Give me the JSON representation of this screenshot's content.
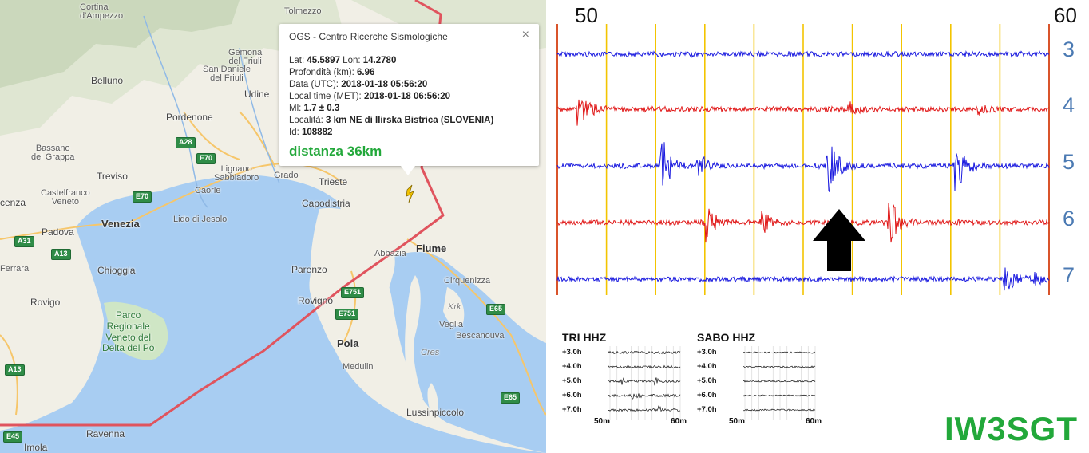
{
  "map": {
    "places": {
      "cortina_line1": "Cortina",
      "cortina_line2": "d'Ampezzo",
      "tolmezzo": "Tolmezzo",
      "gemona_line1": "Gemona",
      "gemona_line2": "del Friuli",
      "sandaniele_line1": "San Daniele",
      "sandaniele_line2": "del Friuli",
      "belluno": "Belluno",
      "udine": "Udine",
      "pordenone": "Pordenone",
      "bassano_line1": "Bassano",
      "bassano_line2": "del Grappa",
      "lignano_line1": "Lignano",
      "lignano_line2": "Sabbiadoro",
      "grado": "Grado",
      "treviso": "Treviso",
      "castelfranco_line1": "Castelfranco",
      "castelfranco_line2": "Veneto",
      "caorle": "Caorle",
      "venezia": "Venezia",
      "lido": "Lido di Jesolo",
      "vicenza": "cenza",
      "padova": "Padova",
      "ferrara": "Ferrara",
      "chioggia": "Chioggia",
      "rovigo": "Rovigo",
      "parco_line1": "Parco",
      "parco_line2": "Regionale",
      "parco_line3": "Veneto del",
      "parco_line4": "Delta del Po",
      "trieste": "Trieste",
      "capodistria": "Capodistria",
      "abbazia": "Abbazia",
      "fiume": "Fiume",
      "parenzo": "Parenzo",
      "rovigno": "Rovigno",
      "cirquenizza": "Cirquenizza",
      "krk": "Krk",
      "veglia": "Veglia",
      "bescanouva": "Bescanouva",
      "pola": "Pola",
      "cres": "Cres",
      "medulin": "Medulin",
      "lussinpiccolo": "Lussinpiccolo",
      "ravenna": "Ravenna",
      "imola": "Imola",
      "roads": [
        "A28",
        "E70",
        "A31",
        "A13",
        "E70",
        "E751",
        "E751",
        "E65",
        "E65",
        "A13",
        "E45"
      ]
    },
    "infowindow": {
      "title": "OGS - Centro Ricerche Sismologiche",
      "close_glyph": "×",
      "lat_label": "Lat:",
      "lat_value": "45.5897",
      "lon_label": "Lon:",
      "lon_value": "14.2780",
      "depth_label": "Profondità (km):",
      "depth_value": "6.96",
      "utc_label": "Data (UTC):",
      "utc_value": "2018-01-18 05:56:20",
      "local_label": "Local time (MET):",
      "local_value": "2018-01-18 06:56:20",
      "ml_label": "Ml:",
      "ml_value": "1.7 ± 0.3",
      "locality_label": "Località:",
      "locality_value": "3 km NE di Ilirska Bistrica (SLOVENIA)",
      "id_label": "Id:",
      "id_value": "108882",
      "distance": "distanza 36km"
    },
    "colors": {
      "sea": "#a8cdf2",
      "land": "#f1efe6",
      "border": "#e0545e",
      "marker": "#f2c200"
    }
  },
  "helicorder": {
    "minute_start": "50",
    "minute_end": "60",
    "hours": [
      "3",
      "4",
      "5",
      "6",
      "7"
    ],
    "colors": {
      "trace_a": "#1a1adf",
      "trace_b": "#e01616",
      "gridline": "#f3c400",
      "edge_line": "#d9542b",
      "hour_label": "#4b7ab3"
    }
  },
  "thumbnails": [
    {
      "title": "TRI HHZ",
      "rows": [
        "+3.0h",
        "+4.0h",
        "+5.0h",
        "+6.0h",
        "+7.0h"
      ],
      "x_start": "50m",
      "x_end": "60m"
    },
    {
      "title": "SABO HHZ",
      "rows": [
        "+3.0h",
        "+4.0h",
        "+5.0h",
        "+6.0h",
        "+7.0h"
      ],
      "x_start": "50m",
      "x_end": "60m"
    }
  ],
  "callsign": "IW3SGT"
}
